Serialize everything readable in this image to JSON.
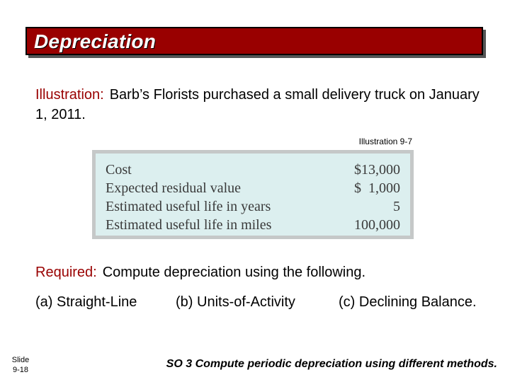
{
  "title": "Depreciation",
  "illustration": {
    "label": "Illustration:",
    "text": "Barb’s Florists purchased a small delivery truck on January 1, 2011."
  },
  "illustration_caption": "Illustration 9-7",
  "table": {
    "rows": [
      {
        "label": "Cost",
        "value": "$13,000"
      },
      {
        "label": "Expected residual value",
        "value": "$  1,000"
      },
      {
        "label": "Estimated useful life in years",
        "value": "5"
      },
      {
        "label": "Estimated useful life in miles",
        "value": "100,000"
      }
    ]
  },
  "required": {
    "label": "Required:",
    "text": "Compute depreciation using the following."
  },
  "methods": [
    "(a) Straight-Line",
    "(b) Units-of-Activity",
    "(c) Declining Balance."
  ],
  "slide": {
    "label": "Slide",
    "number": "9-18"
  },
  "footer": "SO 3  Compute periodic depreciation using different methods.",
  "colors": {
    "accent": "#990000",
    "table_bg": "#dcefef",
    "table_border": "#c5c8c8"
  }
}
